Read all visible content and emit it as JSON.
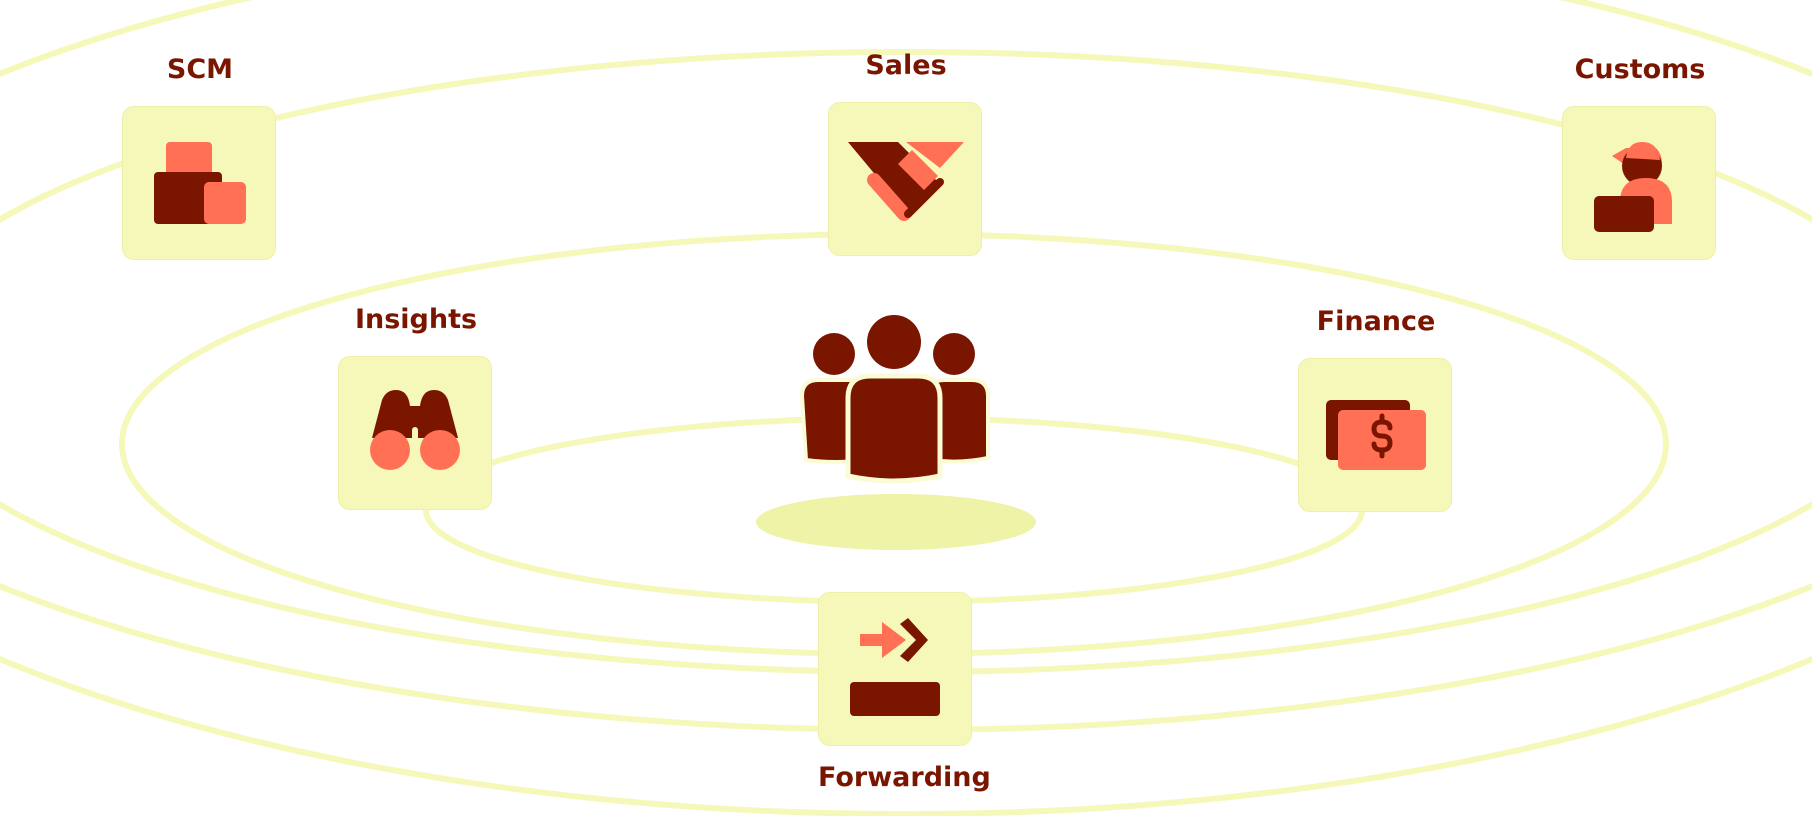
{
  "colors": {
    "orbit": "#f6f8b9",
    "tile": "#f6f8b9",
    "dark": "#7a1600",
    "accent": "#ff7055",
    "label": "#7a1600"
  },
  "center": {
    "icon": "team-icon"
  },
  "nodes": {
    "scm": {
      "label": "SCM",
      "icon": "boxes-icon"
    },
    "sales": {
      "label": "Sales",
      "icon": "handshake-icon"
    },
    "customs": {
      "label": "Customs",
      "icon": "customs-officer-icon"
    },
    "insights": {
      "label": "Insights",
      "icon": "binoculars-icon"
    },
    "finance": {
      "label": "Finance",
      "icon": "cash-icon"
    },
    "forwarding": {
      "label": "Forwarding",
      "icon": "forward-arrow-icon"
    }
  }
}
